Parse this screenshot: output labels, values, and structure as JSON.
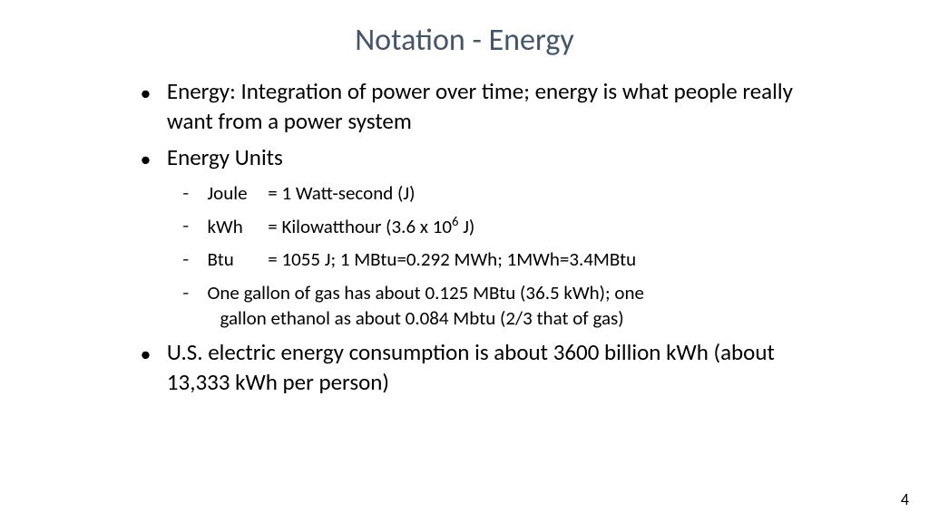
{
  "colors": {
    "title_color": "#44546a",
    "text_color": "#000000",
    "background": "#ffffff"
  },
  "typography": {
    "title_fontsize": 34,
    "body_fontsize": 25,
    "sub_fontsize": 21,
    "pagenum_fontsize": 18,
    "font_family": "Calibri"
  },
  "title": "Notation - Energy",
  "bullets": {
    "b1": "Energy: Integration of power over time; energy is what people really want from a power system",
    "b2": "Energy Units",
    "b2_sub1_unit": "Joule",
    "b2_sub1_def": "= 1 Watt-second (J)",
    "b2_sub2_unit": "kWh",
    "b2_sub2_def_pre": "= Kilowatthour (3.6 x 10",
    "b2_sub2_def_sup": "6",
    "b2_sub2_def_post": " J)",
    "b2_sub3_unit": "Btu",
    "b2_sub3_def": "= 1055 J; 1 MBtu=0.292 MWh; 1MWh=3.4MBtu",
    "b2_sub4_line1": "One gallon of gas has about 0.125 MBtu (36.5 kWh); one",
    "b2_sub4_line2": "gallon  ethanol as about 0.084 Mbtu (2/3 that of gas)",
    "b3": "U.S. electric energy consumption is about 3600 billion kWh (about 13,333 kWh per person)"
  },
  "page_number": "4"
}
